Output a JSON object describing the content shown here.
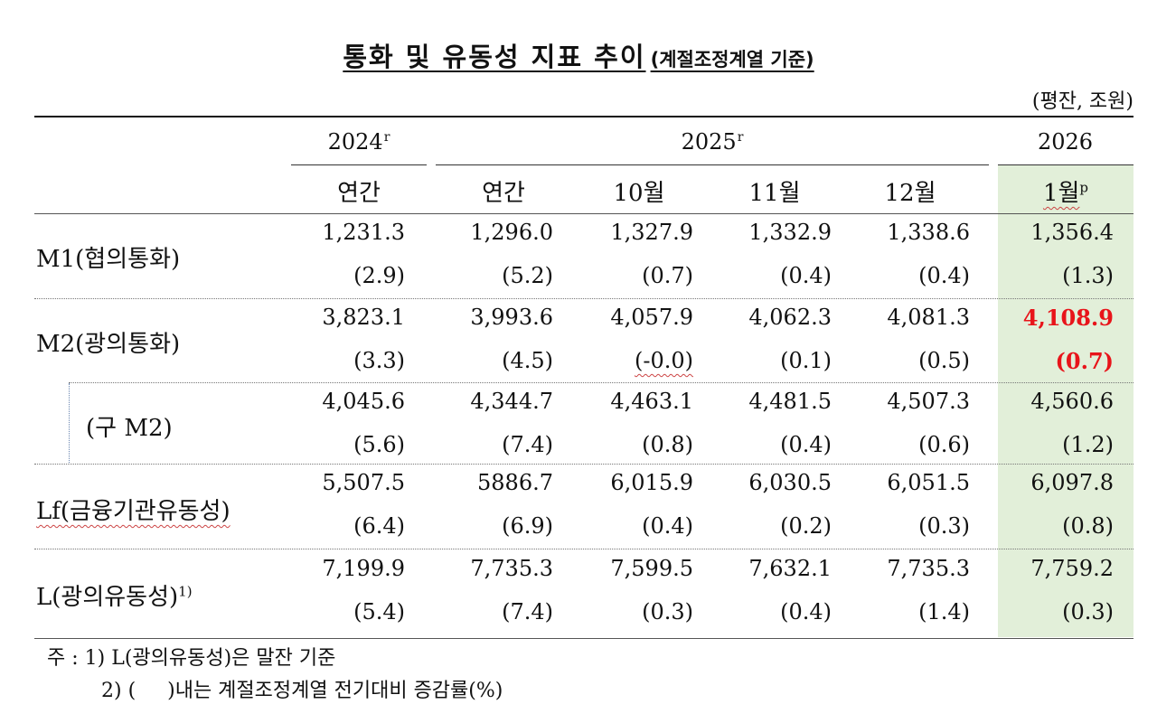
{
  "title": "통화 및 유동성 지표 추이",
  "title_note": "(계절조정계열 기준)",
  "unit": "(평잔, 조원)",
  "header": {
    "years": [
      {
        "label": "2024",
        "sup": "r"
      },
      {
        "label": "2025",
        "sup": "r"
      },
      {
        "label": "2026",
        "sup": ""
      }
    ],
    "periods": [
      {
        "label": "연간",
        "sup": ""
      },
      {
        "label": "연간",
        "sup": ""
      },
      {
        "label": "10월",
        "sup": ""
      },
      {
        "label": "11월",
        "sup": ""
      },
      {
        "label": "12월",
        "sup": ""
      },
      {
        "label": "1월",
        "sup": "p"
      }
    ]
  },
  "rows": [
    {
      "label": "M1(협의통화)",
      "label_sup": "",
      "values": [
        "1,231.3",
        "1,296.0",
        "1,327.9",
        "1,332.9",
        "1,338.6",
        "1,356.4"
      ],
      "changes": [
        "(2.9)",
        "(5.2)",
        "(0.7)",
        "(0.4)",
        "(0.4)",
        "(1.3)"
      ]
    },
    {
      "label": "M2(광의통화)",
      "label_sup": "",
      "values": [
        "3,823.1",
        "3,993.6",
        "4,057.9",
        "4,062.3",
        "4,081.3",
        "4,108.9"
      ],
      "changes": [
        "(3.3)",
        "(4.5)",
        "(-0.0)",
        "(0.1)",
        "(0.5)",
        "(0.7)"
      ]
    },
    {
      "label": "(구  M2)",
      "label_sup": "",
      "values": [
        "4,045.6",
        "4,344.7",
        "4,463.1",
        "4,481.5",
        "4,507.3",
        "4,560.6"
      ],
      "changes": [
        "(5.6)",
        "(7.4)",
        "(0.8)",
        "(0.4)",
        "(0.6)",
        "(1.2)"
      ]
    },
    {
      "label": "Lf(금융기관유동성)",
      "label_sup": "",
      "values": [
        "5,507.5",
        "5886.7",
        "6,015.9",
        "6,030.5",
        "6,051.5",
        "6,097.8"
      ],
      "changes": [
        "(6.4)",
        "(6.9)",
        "(0.4)",
        "(0.2)",
        "(0.3)",
        "(0.8)"
      ]
    },
    {
      "label": "L(광의유동성)",
      "label_sup": "1)",
      "values": [
        "7,199.9",
        "7,735.3",
        "7,599.5",
        "7,632.1",
        "7,735.3",
        "7,759.2"
      ],
      "changes": [
        "(5.4)",
        "(7.4)",
        "(0.3)",
        "(0.4)",
        "(1.4)",
        "(0.3)"
      ]
    }
  ],
  "notes": [
    "주 : 1) L(광의유동성)은 말잔 기준",
    "2) (     )내는 계절조정계열 전기대비 증감률(%)"
  ],
  "colors": {
    "highlight_bg": "#e2efd9",
    "highlight_text": "#e8141a"
  }
}
